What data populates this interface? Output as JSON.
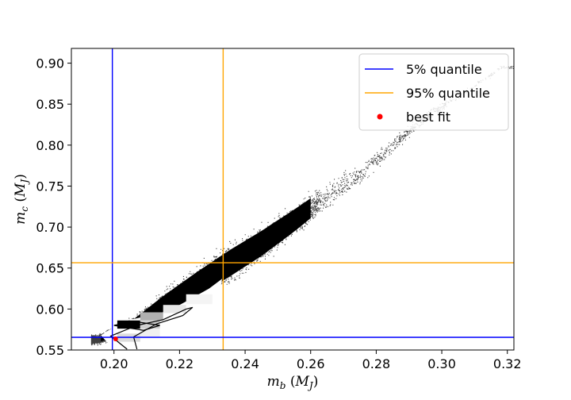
{
  "chart_data": {
    "type": "scatter",
    "title": "",
    "xlabel": {
      "base": "m",
      "sub": "b",
      "unit_base": "M",
      "unit_sub": "J"
    },
    "ylabel": {
      "base": "m",
      "sub": "c",
      "unit_base": "M",
      "unit_sub": "J"
    },
    "xlim": [
      0.187,
      0.322
    ],
    "ylim": [
      0.55,
      0.918
    ],
    "xticks": [
      "0.20",
      "0.22",
      "0.24",
      "0.26",
      "0.28",
      "0.30",
      "0.32"
    ],
    "yticks": [
      "0.55",
      "0.60",
      "0.65",
      "0.70",
      "0.75",
      "0.80",
      "0.85",
      "0.90"
    ],
    "grid": false,
    "legend_position": "top-right",
    "vlines": [
      {
        "name": "5% quantile",
        "x": 0.1995,
        "color": "#0000ff"
      },
      {
        "name": "95% quantile",
        "x": 0.2333,
        "color": "#ffa500"
      }
    ],
    "hlines": [
      {
        "name": "5% quantile",
        "y": 0.5655,
        "color": "#0000ff"
      },
      {
        "name": "95% quantile",
        "y": 0.6565,
        "color": "#ffa500"
      }
    ],
    "best_fit": {
      "name": "best fit",
      "x": 0.2005,
      "y": 0.5635,
      "color": "#ff0000"
    },
    "ridge": [
      [
        0.195,
        0.563
      ],
      [
        0.205,
        0.578
      ],
      [
        0.215,
        0.605
      ],
      [
        0.225,
        0.63
      ],
      [
        0.235,
        0.655
      ],
      [
        0.245,
        0.68
      ],
      [
        0.255,
        0.708
      ],
      [
        0.265,
        0.738
      ],
      [
        0.275,
        0.765
      ],
      [
        0.285,
        0.8
      ],
      [
        0.295,
        0.835
      ],
      [
        0.305,
        0.86
      ],
      [
        0.318,
        0.895
      ]
    ],
    "ridge_width": [
      0.004,
      0.007,
      0.012,
      0.016,
      0.018,
      0.017,
      0.015,
      0.012,
      0.009,
      0.007,
      0.005,
      0.003,
      0.002
    ],
    "legend": [
      "5% quantile",
      "95% quantile",
      "best fit"
    ]
  }
}
